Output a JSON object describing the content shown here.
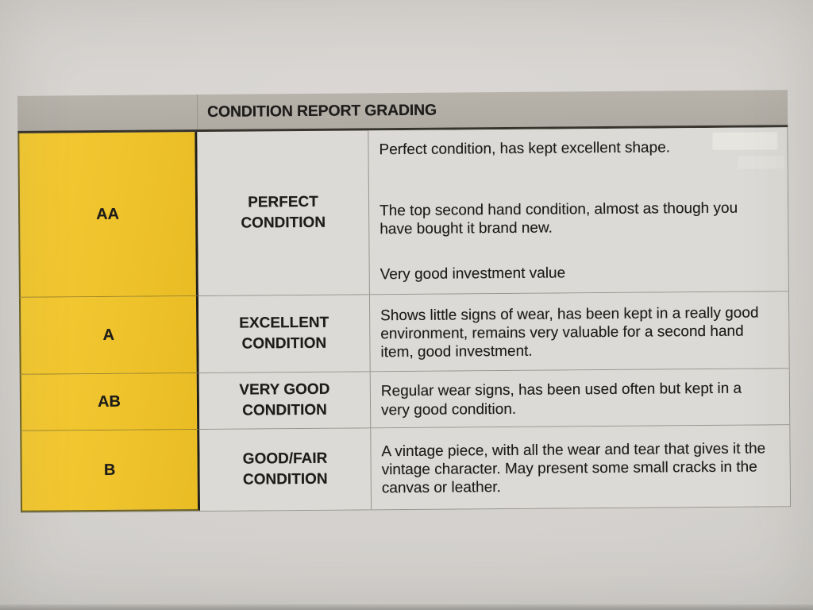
{
  "page": {
    "background_color": "#d5d2cf",
    "description": "Photograph of a printed condition grading chart on paper"
  },
  "table": {
    "header": {
      "title": "CONDITION REPORT GRADING",
      "background_color": "#b3afa7"
    },
    "colors": {
      "grade_column_bg": "#efc32c",
      "cell_bg": "#dcdad6",
      "text": "#1d1c1a",
      "dark_border": "#211f1a",
      "light_border": "#97948e"
    },
    "rows": [
      {
        "grade": "AA",
        "label_line1": "PERFECT",
        "label_line2": "CONDITION",
        "paragraphs": [
          "Perfect condition, has kept excellent shape.",
          "The top second hand condition, almost as though you have bought it brand new.",
          "Very good investment value"
        ]
      },
      {
        "grade": "A",
        "label_line1": "EXCELLENT",
        "label_line2": "CONDITION",
        "paragraphs": [
          "Shows little signs of wear, has been kept in a really good environment, remains very valuable for a second hand item, good investment."
        ]
      },
      {
        "grade": "AB",
        "label_line1": "VERY GOOD",
        "label_line2": "CONDITION",
        "paragraphs": [
          "Regular wear signs, has been used often but kept in a very good condition."
        ]
      },
      {
        "grade": "B",
        "label_line1": "GOOD/FAIR",
        "label_line2": "CONDITION",
        "paragraphs": [
          "A vintage piece, with all the wear and tear that gives it the vintage character. May present some small cracks in the canvas or leather."
        ]
      }
    ]
  }
}
